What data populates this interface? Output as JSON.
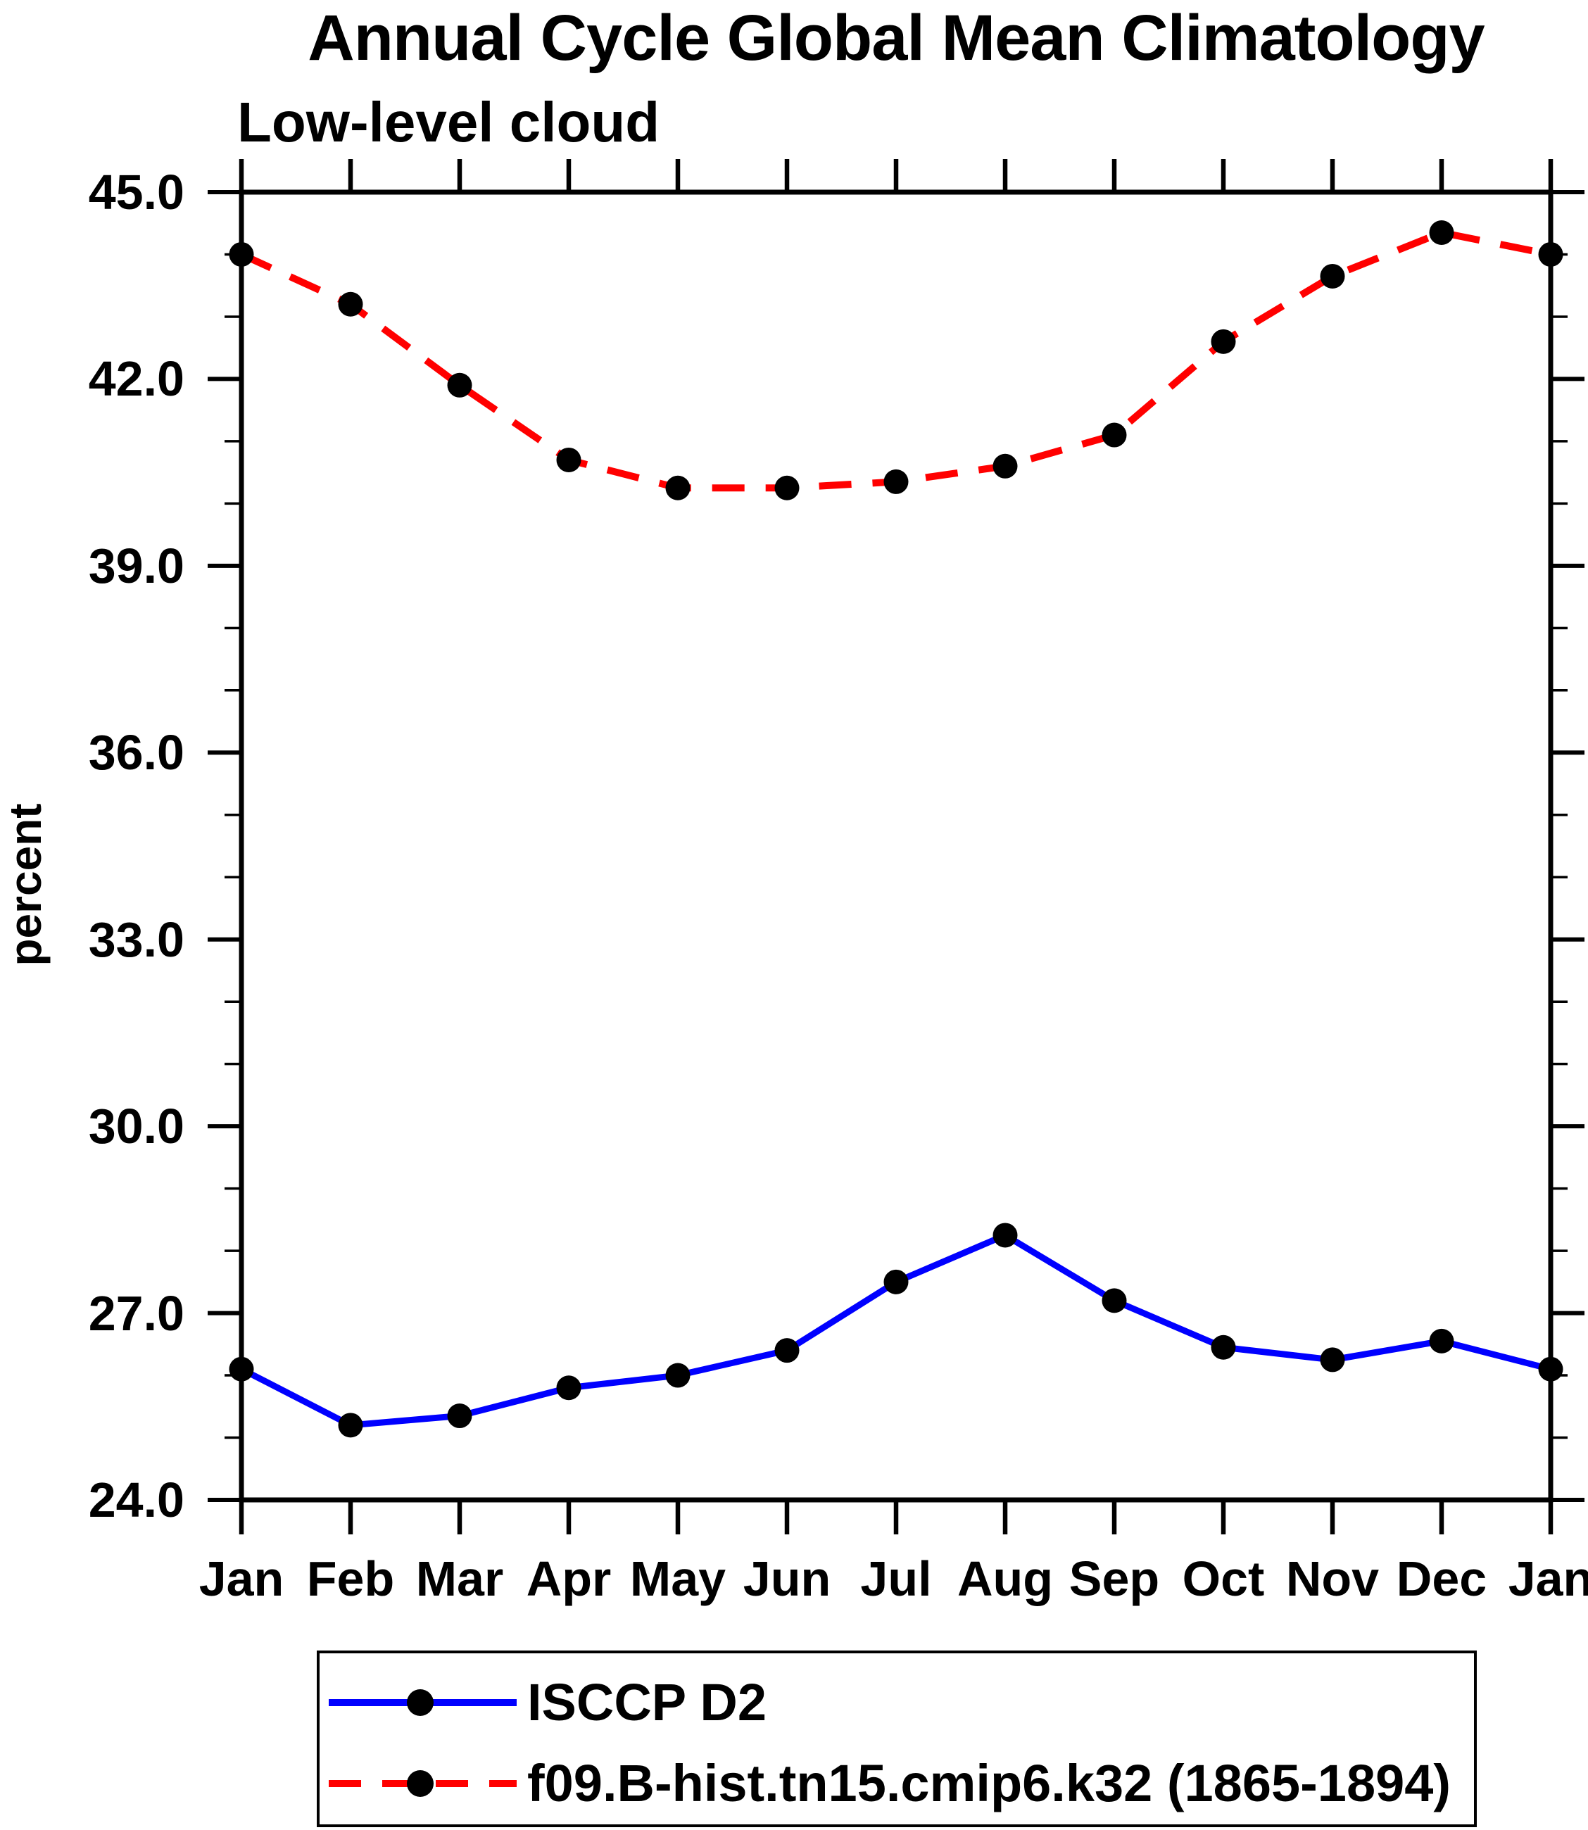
{
  "page": {
    "background": "#ffffff",
    "foreground": "#000000"
  },
  "header": {
    "title": "Annual Cycle Global Mean Climatology",
    "subtitle": "Low-level cloud"
  },
  "chart_data": {
    "type": "line",
    "title": "Annual Cycle Global Mean Climatology",
    "subtitle": "Low-level cloud",
    "xlabel": "",
    "ylabel": "percent",
    "x_categories": [
      "Jan",
      "Feb",
      "Mar",
      "Apr",
      "May",
      "Jun",
      "Jul",
      "Aug",
      "Sep",
      "Oct",
      "Nov",
      "Dec",
      "Jan"
    ],
    "ylim": [
      24.0,
      45.0
    ],
    "y_ticks": [
      45.0,
      42.0,
      39.0,
      36.0,
      33.0,
      30.0,
      27.0,
      24.0
    ],
    "y_tick_labels": [
      "45.0",
      "42.0",
      "39.0",
      "36.0",
      "33.0",
      "30.0",
      "27.0",
      "24.0"
    ],
    "y_minor_tick_step": 1.0,
    "grid": "off",
    "legend_position": "bottom",
    "marker": {
      "shape": "circle",
      "color": "#000000"
    },
    "series": [
      {
        "name": "ISCCP D2",
        "color": "#0000ff",
        "line_style": "solid",
        "values": [
          26.1,
          25.2,
          25.35,
          25.8,
          26.0,
          26.4,
          27.5,
          28.25,
          27.2,
          26.45,
          26.25,
          26.55,
          26.1
        ]
      },
      {
        "name": "f09.B-hist.tn15.cmip6.k32 (1865-1894)",
        "color": "#ff0000",
        "line_style": "dashed",
        "values": [
          44.0,
          43.2,
          41.9,
          40.7,
          40.25,
          40.25,
          40.35,
          40.6,
          41.1,
          42.6,
          43.65,
          44.35,
          44.0
        ]
      }
    ]
  },
  "legend": {
    "items": [
      {
        "label": "ISCCP D2",
        "color": "#0000ff",
        "style": "solid"
      },
      {
        "label": "f09.B-hist.tn15.cmip6.k32 (1865-1894)",
        "color": "#ff0000",
        "style": "dashed"
      }
    ]
  }
}
